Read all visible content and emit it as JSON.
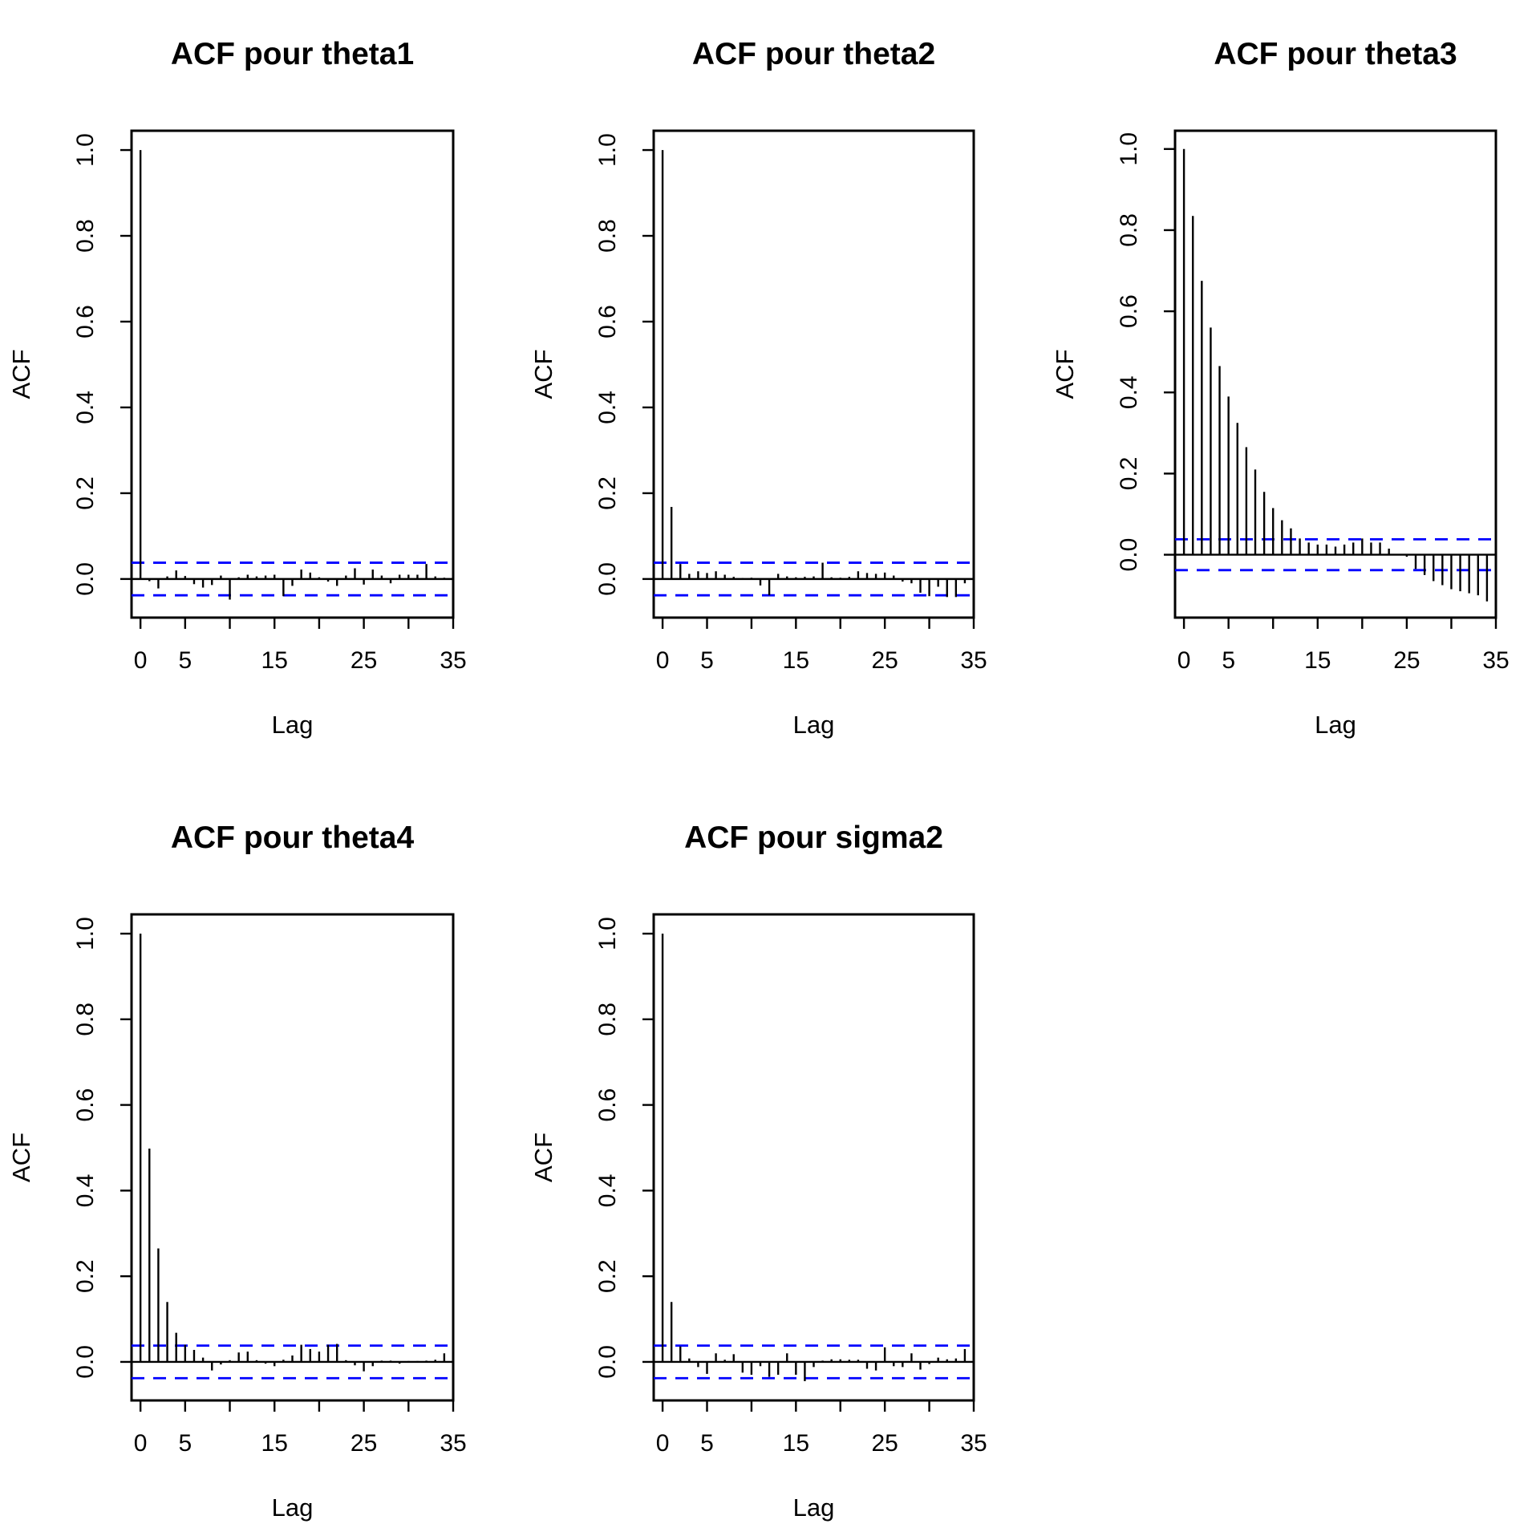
{
  "chart_data": [
    {
      "type": "bar",
      "title": "ACF pour theta1",
      "xlabel": "Lag",
      "ylabel": "ACF",
      "xlim": [
        -1,
        35
      ],
      "ylim": [
        -0.09,
        1.045
      ],
      "x_ticks": [
        0,
        5,
        15,
        25,
        35
      ],
      "y_ticks": [
        "0.0",
        "0.2",
        "0.4",
        "0.6",
        "0.8",
        "1.0"
      ],
      "ci": 0.038,
      "values": [
        1.0,
        -0.005,
        -0.022,
        0.006,
        0.02,
        0.007,
        -0.012,
        -0.02,
        -0.014,
        0.008,
        -0.048,
        0.004,
        0.01,
        0.006,
        0.008,
        0.01,
        -0.04,
        -0.016,
        0.022,
        0.015,
        0.004,
        -0.006,
        -0.016,
        0.008,
        0.025,
        -0.013,
        0.022,
        0.008,
        -0.01,
        0.01,
        0.01,
        0.01,
        0.035,
        0.006,
        0.003,
        -0.006
      ]
    },
    {
      "type": "bar",
      "title": "ACF pour theta2",
      "xlabel": "Lag",
      "ylabel": "ACF",
      "xlim": [
        -1,
        35
      ],
      "ylim": [
        -0.09,
        1.045
      ],
      "x_ticks": [
        0,
        5,
        15,
        25,
        35
      ],
      "y_ticks": [
        "0.0",
        "0.2",
        "0.4",
        "0.6",
        "0.8",
        "1.0"
      ],
      "ci": 0.038,
      "values": [
        1.0,
        0.168,
        0.035,
        0.012,
        0.018,
        0.014,
        0.018,
        0.01,
        0.005,
        0.002,
        0.003,
        -0.015,
        -0.038,
        0.012,
        0.006,
        0.004,
        0.005,
        0.006,
        0.038,
        0.004,
        0.003,
        0.005,
        0.018,
        0.014,
        0.012,
        0.015,
        0.008,
        -0.006,
        -0.01,
        -0.032,
        -0.04,
        -0.018,
        -0.042,
        -0.042,
        -0.01,
        0.005
      ]
    },
    {
      "type": "bar",
      "title": "ACF pour theta3",
      "xlabel": "Lag",
      "ylabel": "ACF",
      "xlim": [
        -1,
        35
      ],
      "ylim": [
        -0.155,
        1.045
      ],
      "x_ticks": [
        0,
        5,
        15,
        25,
        35
      ],
      "y_ticks": [
        "0.0",
        "0.2",
        "0.4",
        "0.6",
        "0.8",
        "1.0"
      ],
      "ci": 0.038,
      "values": [
        1.0,
        0.835,
        0.675,
        0.56,
        0.465,
        0.39,
        0.325,
        0.265,
        0.21,
        0.155,
        0.115,
        0.085,
        0.065,
        0.04,
        0.03,
        0.025,
        0.025,
        0.02,
        0.025,
        0.03,
        0.04,
        0.03,
        0.03,
        0.015,
        0.002,
        -0.005,
        -0.035,
        -0.05,
        -0.065,
        -0.075,
        -0.085,
        -0.09,
        -0.095,
        -0.1,
        -0.115
      ]
    },
    {
      "type": "bar",
      "title": "ACF pour theta4",
      "xlabel": "Lag",
      "ylabel": "ACF",
      "xlim": [
        -1,
        35
      ],
      "ylim": [
        -0.09,
        1.045
      ],
      "x_ticks": [
        0,
        5,
        15,
        25,
        35
      ],
      "y_ticks": [
        "0.0",
        "0.2",
        "0.4",
        "0.6",
        "0.8",
        "1.0"
      ],
      "ci": 0.038,
      "values": [
        1.0,
        0.498,
        0.265,
        0.14,
        0.068,
        0.04,
        0.028,
        0.01,
        -0.02,
        -0.006,
        0.004,
        0.022,
        0.024,
        0.004,
        -0.004,
        -0.01,
        0.005,
        0.015,
        0.04,
        0.03,
        0.024,
        0.04,
        0.042,
        0.004,
        -0.008,
        -0.022,
        -0.01,
        0.003,
        0.003,
        -0.004,
        0.002,
        0.002,
        0.003,
        0.005,
        0.02,
        0.01
      ]
    },
    {
      "type": "bar",
      "title": "ACF pour sigma2",
      "xlabel": "Lag",
      "ylabel": "ACF",
      "xlim": [
        -1,
        35
      ],
      "ylim": [
        -0.09,
        1.045
      ],
      "x_ticks": [
        0,
        5,
        15,
        25,
        35
      ],
      "y_ticks": [
        "0.0",
        "0.2",
        "0.4",
        "0.6",
        "0.8",
        "1.0"
      ],
      "ci": 0.038,
      "values": [
        1.0,
        0.14,
        0.036,
        0.008,
        -0.012,
        -0.028,
        0.02,
        0.005,
        0.018,
        -0.025,
        -0.03,
        -0.01,
        -0.035,
        -0.03,
        0.02,
        -0.03,
        -0.045,
        -0.012,
        0.003,
        0.006,
        0.006,
        0.005,
        0.005,
        -0.016,
        -0.02,
        0.034,
        -0.01,
        -0.012,
        0.02,
        -0.018,
        -0.005,
        0.01,
        0.006,
        0.008,
        0.03,
        0.036
      ]
    }
  ]
}
